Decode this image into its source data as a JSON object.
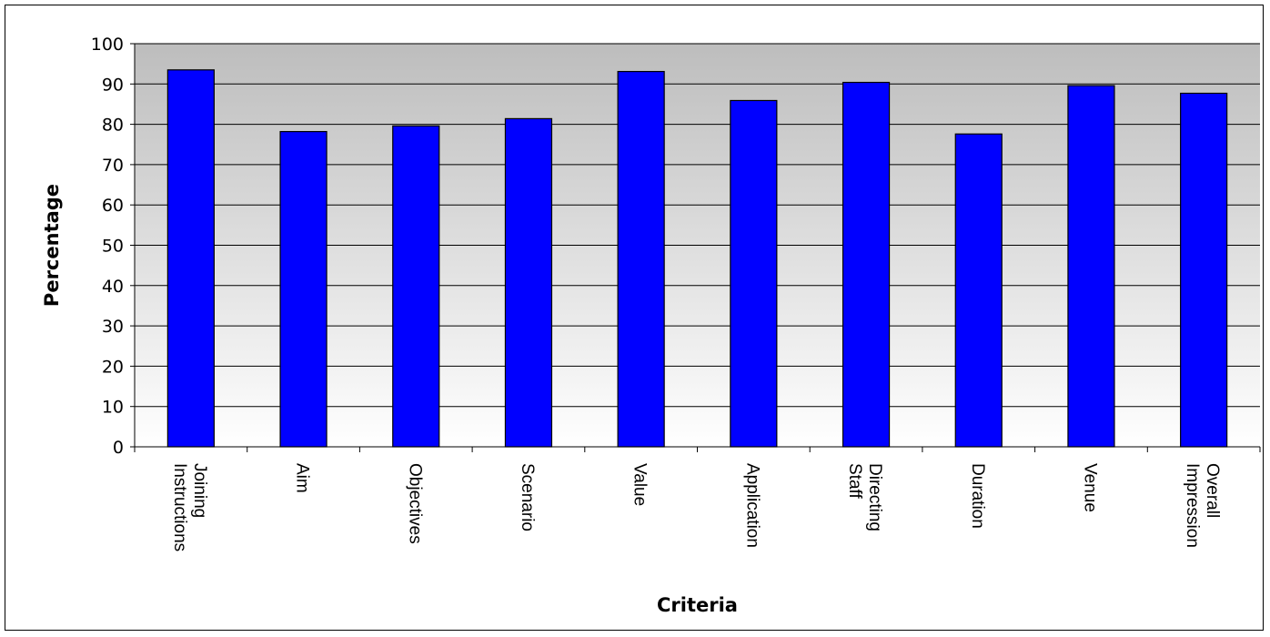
{
  "chart_data": {
    "type": "bar",
    "title": "",
    "xlabel": "Criteria",
    "ylabel": "Percentage",
    "ylim": [
      0,
      100
    ],
    "ytick_step": 10,
    "grid": true,
    "legend": "none",
    "categories": [
      [
        "Joining",
        "Instructions"
      ],
      [
        "Aim"
      ],
      [
        "Objectives"
      ],
      [
        "Scenario"
      ],
      [
        "Value"
      ],
      [
        "Application"
      ],
      [
        "Directing",
        "Staff"
      ],
      [
        "Duration"
      ],
      [
        "Venue"
      ],
      [
        "Overall",
        "Impression"
      ]
    ],
    "values": [
      93.5,
      78.2,
      79.6,
      81.4,
      93.1,
      85.9,
      90.4,
      77.6,
      89.6,
      87.7
    ],
    "colors": {
      "bar": "#0000ff",
      "plot_top": "#bdbdbd",
      "plot_bottom": "#ffffff",
      "gridline": "#000000"
    }
  }
}
